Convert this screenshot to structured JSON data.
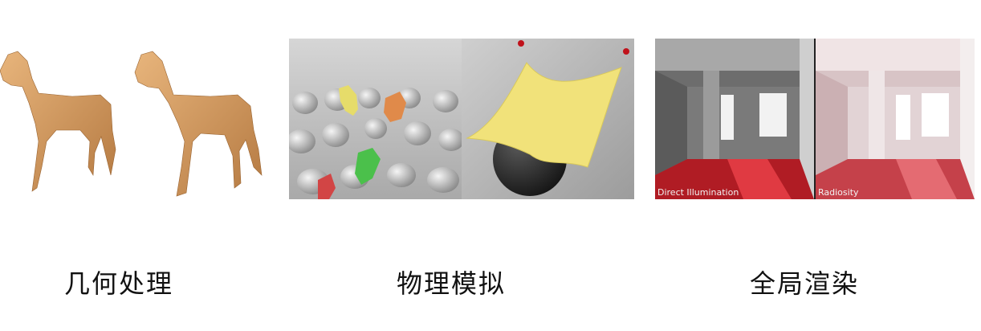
{
  "panels": [
    {
      "caption": "几何处理",
      "icon": "horse-mesh-icon",
      "colors": {
        "horse": "#d9a066",
        "horse_shadow": "#a9733e"
      }
    },
    {
      "caption": "物理模拟",
      "icon": "physics-simulation-icon",
      "colors": {
        "floor": "#bdbdbd",
        "cloth": "#f1e27a",
        "sphere": "#2b2b2b",
        "pin": "#c0121b"
      }
    },
    {
      "caption": "全局渲染",
      "icon": "room-rendering-icon",
      "labels": [
        "Direct Illumination",
        "Radiosity"
      ],
      "colors": {
        "floor_red": "#d0262f",
        "walls": "#e9e9e9"
      }
    }
  ]
}
